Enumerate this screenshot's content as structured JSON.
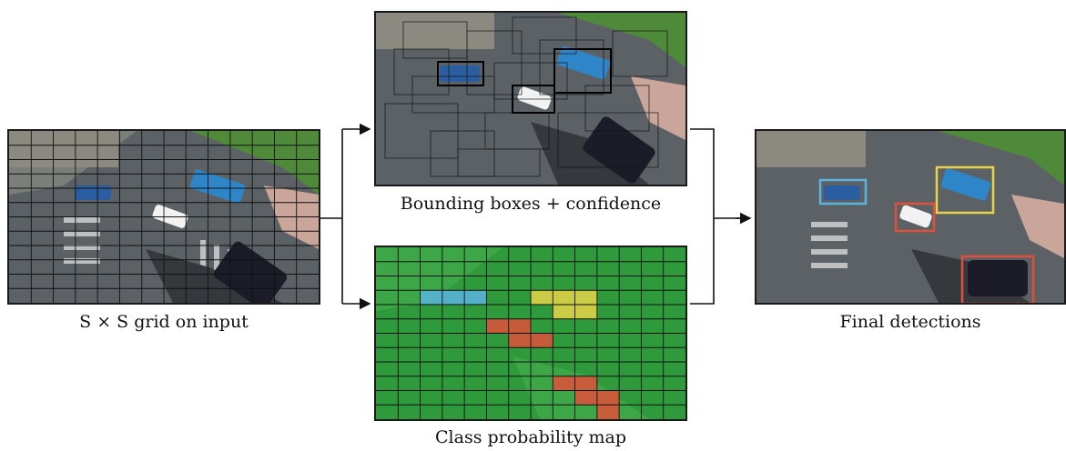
{
  "panels": {
    "input": {
      "caption": "S × S grid on input",
      "grid_rows": 12,
      "grid_cols": 14
    },
    "bboxes": {
      "caption": "Bounding boxes + confidence"
    },
    "classmap": {
      "caption": "Class probability map",
      "grid_rows": 12,
      "grid_cols": 14
    },
    "final": {
      "caption": "Final detections"
    }
  },
  "colors": {
    "blue_class": "#5ab4e0",
    "yellow_class": "#e8d44a",
    "red_class": "#e0503a",
    "green_map": "#2f9a3c",
    "road": "#5c6166",
    "grass": "#4f8a3a"
  }
}
